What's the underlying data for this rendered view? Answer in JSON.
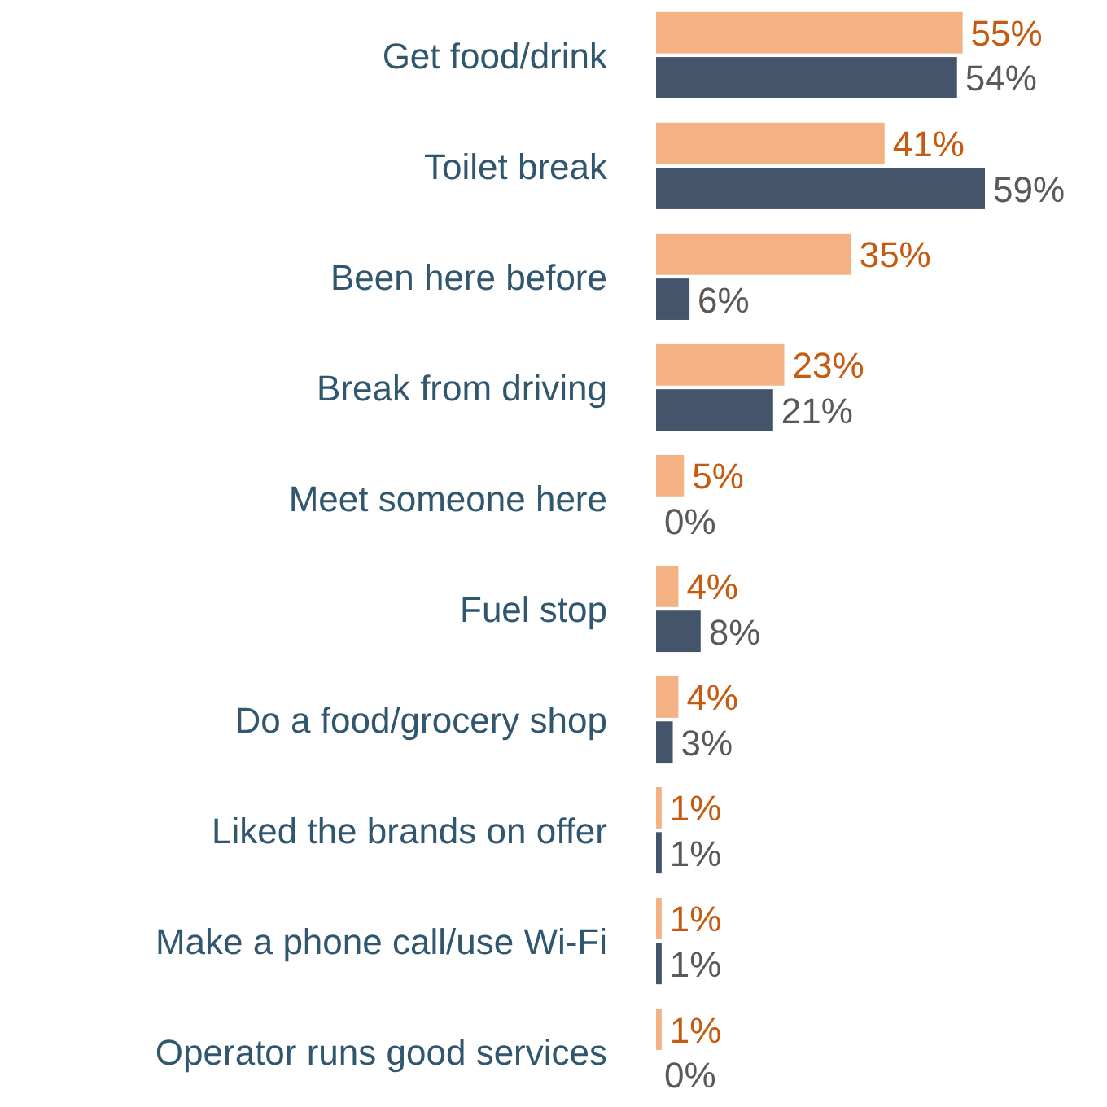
{
  "chart_data": {
    "type": "bar",
    "orientation": "horizontal",
    "categories": [
      "Get food/drink",
      "Toilet break",
      "Been here before",
      "Break from driving",
      "Meet someone here",
      "Fuel stop",
      "Do a food/grocery shop",
      "Liked the brands on offer",
      "Make a phone call/use Wi-Fi",
      "Operator runs good services"
    ],
    "series": [
      {
        "color": "#f4b183",
        "values": [
          55,
          41,
          35,
          23,
          5,
          4,
          4,
          1,
          1,
          1
        ],
        "value_labels": [
          "55%",
          "41%",
          "35%",
          "23%",
          "5%",
          "4%",
          "4%",
          "1%",
          "1%",
          "1%"
        ]
      },
      {
        "color": "#44546a",
        "values": [
          54,
          59,
          6,
          21,
          0,
          8,
          3,
          1,
          1,
          0
        ],
        "value_labels": [
          "54%",
          "59%",
          "6%",
          "21%",
          "0%",
          "8%",
          "3%",
          "1%",
          "1%",
          "0%"
        ]
      }
    ],
    "tick_labels": "y"
  }
}
